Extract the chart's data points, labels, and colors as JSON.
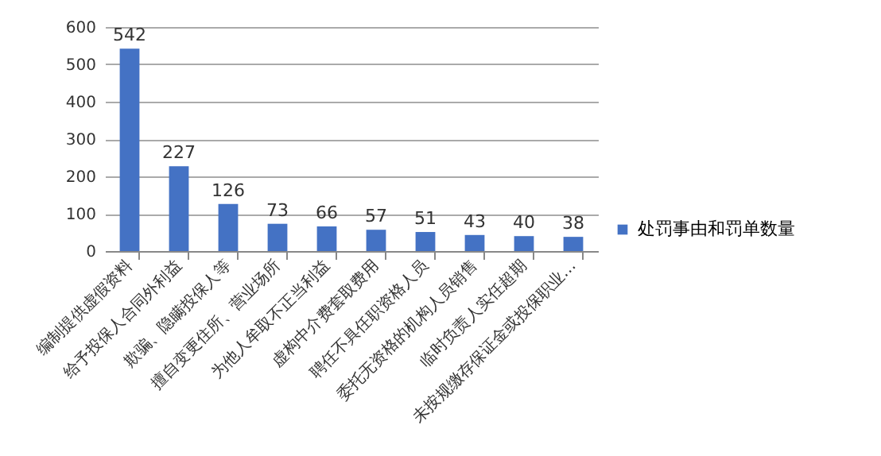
{
  "chart_data": {
    "type": "bar",
    "categories": [
      "编制提供虚假资料",
      "给予投保人合同外利益",
      "欺骗、隐瞒投保人等",
      "擅自变更住所、营业场所",
      "为他人牟取不正当利益",
      "虚构中介费套取费用",
      "聘任不具任职资格人员",
      "委托无资格的机构人员销售",
      "临时负责人实任超期",
      "未按规缴存保证金或投保职业…"
    ],
    "series": [
      {
        "name": "处罚事由和罚单数量",
        "color": "#4472c4",
        "values": [
          542,
          227,
          126,
          73,
          66,
          57,
          51,
          43,
          40,
          38
        ]
      }
    ],
    "ylim": [
      0,
      600
    ],
    "yticks": [
      0,
      100,
      200,
      300,
      400,
      500,
      600
    ],
    "grid": "y",
    "legend": "right",
    "data_labels": true
  }
}
